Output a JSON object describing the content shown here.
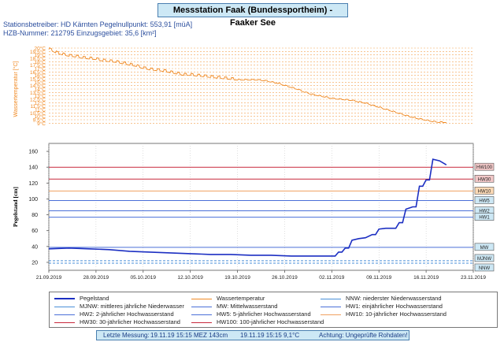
{
  "header": {
    "title": "Messstation Faak (Bundessportheim)  -  Faaker See",
    "info_line1": "Stationsbetreiber: HD Kärnten     Pegelnullpunkt: 553,91 [müA]",
    "info_line2": "HZB-Nummer: 212795   Einzugsgebiet: 35,6 [km²]"
  },
  "footer": {
    "label": "Letzte Messung:",
    "water_level": "19.11.19 15:15 MEZ     143cm",
    "temperature": "19.11.19 15:15  9,1°C",
    "warning": "Achtung: Ungeprüfte Rohdaten!"
  },
  "colors": {
    "water_temp": "#f08a24",
    "water_level": "#1c2fc2",
    "hw_red": "#c8283c",
    "hw_orange": "#f0a060",
    "hw_blue": "#4a6fd8",
    "mw": "#4a6fd8",
    "low_water": "#4a8fd8",
    "label_box_blue": "#cde8f5",
    "label_box_red": "#f2c8c8",
    "label_box_orange": "#fbd9b5"
  },
  "chart_data": [
    {
      "type": "line",
      "ylabel": "Wassertemperatur [°C]",
      "ylim": [
        8,
        20
      ],
      "y_ticks": [
        "20°C",
        "19.5°C",
        "19°C",
        "18.5°C",
        "18°C",
        "17.5°C",
        "17°C",
        "16.5°C",
        "16°C",
        "15.5°C",
        "15°C",
        "14.5°C",
        "14°C",
        "13.5°C",
        "13°C",
        "12.5°C",
        "12°C",
        "11.5°C",
        "11°C",
        "10.5°C",
        "10°C",
        "9.5°C",
        "9°C"
      ],
      "y_tick_values": [
        20,
        19.5,
        19,
        18.5,
        18,
        17.5,
        17,
        16.5,
        16,
        15.5,
        15,
        14.5,
        14,
        13.5,
        13,
        12.5,
        12,
        11.5,
        11,
        10.5,
        10,
        9.5,
        9
      ],
      "grid": true,
      "series": [
        {
          "name": "Wassertemperatur",
          "x": [
            "2019-09-21",
            "2019-09-22",
            "2019-09-23",
            "2019-09-24",
            "2019-09-25",
            "2019-09-26",
            "2019-09-27",
            "2019-09-28",
            "2019-09-29",
            "2019-09-30",
            "2019-10-01",
            "2019-10-02",
            "2019-10-03",
            "2019-10-04",
            "2019-10-05",
            "2019-10-06",
            "2019-10-07",
            "2019-10-08",
            "2019-10-09",
            "2019-10-10",
            "2019-10-11",
            "2019-10-12",
            "2019-10-13",
            "2019-10-14",
            "2019-10-15",
            "2019-10-16",
            "2019-10-17",
            "2019-10-18",
            "2019-10-19",
            "2019-10-20",
            "2019-10-21",
            "2019-10-22",
            "2019-10-23",
            "2019-10-24",
            "2019-10-25",
            "2019-10-26",
            "2019-10-27",
            "2019-10-28",
            "2019-10-29",
            "2019-10-30",
            "2019-10-31",
            "2019-11-01",
            "2019-11-02",
            "2019-11-03",
            "2019-11-04",
            "2019-11-05",
            "2019-11-06",
            "2019-11-07",
            "2019-11-08",
            "2019-11-09",
            "2019-11-10",
            "2019-11-11",
            "2019-11-12",
            "2019-11-13",
            "2019-11-14",
            "2019-11-15",
            "2019-11-16",
            "2019-11-17",
            "2019-11-18",
            "2019-11-19"
          ],
          "values": [
            19.8,
            19.3,
            19.0,
            18.8,
            18.7,
            18.5,
            18.4,
            18.3,
            18.1,
            18.0,
            17.9,
            17.7,
            17.5,
            17.3,
            17.0,
            16.8,
            16.7,
            16.6,
            16.4,
            16.2,
            16.0,
            16.0,
            15.9,
            15.8,
            15.7,
            15.6,
            15.5,
            15.4,
            15.3,
            15.3,
            15.3,
            15.3,
            15.2,
            15.0,
            14.8,
            14.5,
            14.2,
            13.9,
            13.5,
            13.2,
            13.0,
            12.8,
            12.6,
            12.5,
            12.4,
            12.3,
            12.1,
            11.9,
            11.6,
            11.3,
            11.0,
            10.7,
            10.4,
            10.1,
            9.8,
            9.6,
            9.4,
            9.2,
            9.1,
            9.1
          ]
        }
      ]
    },
    {
      "type": "line",
      "ylabel": "Pegelstand [cm]",
      "ylim": [
        10,
        170
      ],
      "y_ticks": [
        160,
        140,
        120,
        100,
        80,
        60,
        40,
        20
      ],
      "x_ticks": [
        "21.09.2019",
        "28.09.2019",
        "05.10.2019",
        "12.10.2019",
        "19.10.2019",
        "26.10.2019",
        "02.11.2019",
        "09.11.2019",
        "16.11.2019",
        "23.11.2019"
      ],
      "x_tick_dates": [
        "2019-09-21",
        "2019-09-28",
        "2019-10-05",
        "2019-10-12",
        "2019-10-19",
        "2019-10-26",
        "2019-11-02",
        "2019-11-09",
        "2019-11-16",
        "2019-11-23"
      ],
      "grid": true,
      "series": [
        {
          "name": "Pegelstand",
          "x": [
            "2019-09-21",
            "2019-09-24",
            "2019-09-27",
            "2019-09-30",
            "2019-10-03",
            "2019-10-06",
            "2019-10-09",
            "2019-10-12",
            "2019-10-15",
            "2019-10-18",
            "2019-10-21",
            "2019-10-24",
            "2019-10-27",
            "2019-10-30",
            "2019-11-01",
            "2019-11-02",
            "2019-11-03",
            "2019-11-04",
            "2019-11-05",
            "2019-11-06",
            "2019-11-07",
            "2019-11-08",
            "2019-11-09",
            "2019-11-10",
            "2019-11-11",
            "2019-11-12",
            "2019-11-13",
            "2019-11-14",
            "2019-11-15",
            "2019-11-16",
            "2019-11-17",
            "2019-11-18",
            "2019-11-19"
          ],
          "values": [
            37,
            38,
            37,
            36,
            34,
            33,
            32,
            31,
            30,
            30,
            29,
            29,
            28,
            28,
            28,
            28,
            33,
            38,
            48,
            50,
            51,
            55,
            62,
            63,
            63,
            70,
            87,
            90,
            116,
            124,
            150,
            148,
            143
          ]
        }
      ],
      "thresholds": [
        {
          "label": "HW100",
          "value": 140,
          "color": "#c8283c",
          "box": "red"
        },
        {
          "label": "HW30",
          "value": 125,
          "color": "#c8283c",
          "box": "red"
        },
        {
          "label": "HW10",
          "value": 110,
          "color": "#f0a060",
          "box": "orange"
        },
        {
          "label": "HW5",
          "value": 98,
          "color": "#4a6fd8",
          "box": "blue"
        },
        {
          "label": "HW2",
          "value": 85,
          "color": "#4a6fd8",
          "box": "blue"
        },
        {
          "label": "HW1",
          "value": 77,
          "color": "#4a6fd8",
          "box": "blue"
        },
        {
          "label": "MW",
          "value": 39,
          "color": "#4a6fd8",
          "box": "blue"
        },
        {
          "label": "MJNW",
          "value": 22,
          "color": "#4a8fd8",
          "box": "blue"
        },
        {
          "label": "NNW",
          "value": 19,
          "color": "#4a8fd8",
          "box": "blue"
        }
      ]
    }
  ],
  "legend": {
    "items": [
      {
        "label": "Pegelstand",
        "color": "#1c2fc2",
        "thick": true
      },
      {
        "label": "Wassertemperatur",
        "color": "#f08a24",
        "thick": false
      },
      {
        "label": "NNW: niederster Niederwasserstand",
        "color": "#4a8fd8",
        "thick": false
      },
      {
        "label": "MJNW: mittleres jährliche Niederwasser",
        "color": "#4a8fd8",
        "thick": false
      },
      {
        "label": "MW: Mittelwasserstand",
        "color": "#4a6fd8",
        "thick": false
      },
      {
        "label": "HW1: einjährlicher Hochwasserstand",
        "color": "#4a6fd8",
        "thick": false
      },
      {
        "label": "HW2: 2-jährlicher Hochwasserstand",
        "color": "#4a6fd8",
        "thick": false
      },
      {
        "label": "HW5: 5-jährlicher Hochwasserstand",
        "color": "#4a6fd8",
        "thick": false
      },
      {
        "label": "HW10: 10-jährlicher Hochwasserstand",
        "color": "#f0a060",
        "thick": false
      },
      {
        "label": "HW30: 30-jährlicher Hochwasserstand",
        "color": "#c8283c",
        "thick": false
      },
      {
        "label": "HW100: 100-jährlicher Hochwasserstand",
        "color": "#c8283c",
        "thick": false
      }
    ]
  }
}
